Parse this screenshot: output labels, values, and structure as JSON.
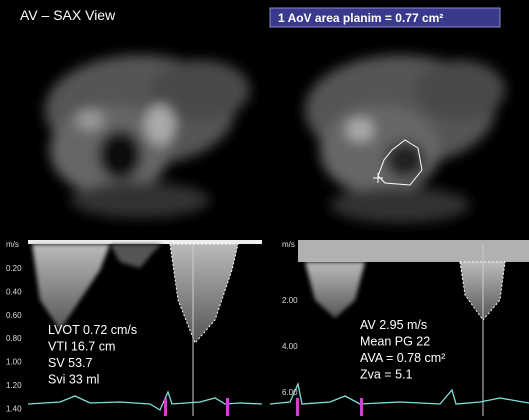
{
  "header": {
    "view_title": "AV – SAX View",
    "measurement_box": "1  AoV area planim = 0.77 cm²"
  },
  "left_doppler": {
    "scale_unit": "m/s",
    "scale_labels": [
      "0.20",
      "0.40",
      "0.60",
      "0.80",
      "1.00",
      "1.20",
      "1.40"
    ],
    "measurements": [
      "LVOT 0.72 cm/s",
      "VTI 16.7 cm",
      "SV 53.7",
      "Svi 33 ml"
    ]
  },
  "right_doppler": {
    "scale_unit": "m/s",
    "scale_labels": [
      "2.00",
      "4.00",
      "6.00"
    ],
    "measurements": [
      "AV 2.95 m/s",
      "Mean PG 22",
      "AVA = 0.78 cm²",
      "Zva = 5.1"
    ]
  }
}
